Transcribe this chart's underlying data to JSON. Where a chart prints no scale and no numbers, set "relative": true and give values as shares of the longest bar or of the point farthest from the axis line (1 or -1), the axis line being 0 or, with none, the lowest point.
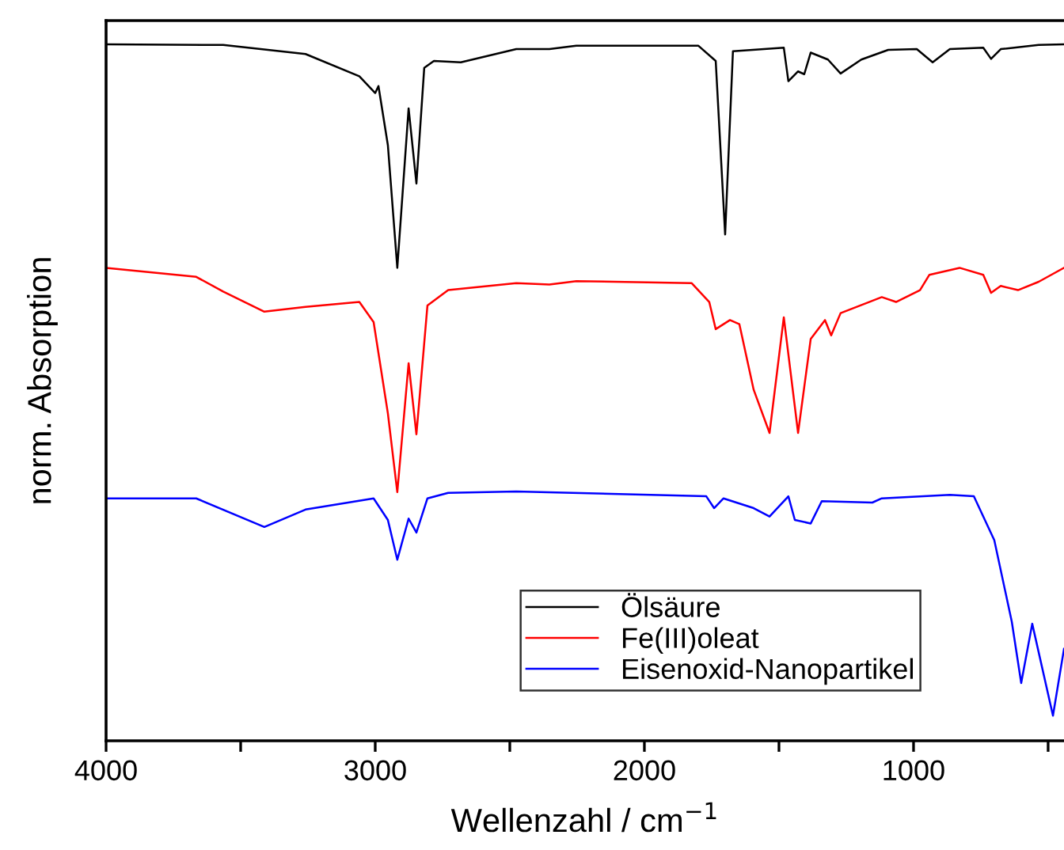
{
  "chart_data": {
    "type": "line",
    "relative": true,
    "xlabel": "Wellenzahl / cm$^{−1}$",
    "ylabel": "norm. Absorption",
    "xlim": [
      4000,
      441
    ],
    "xticks": [
      4000,
      {
        "value": 3500,
        "label": null
      },
      3000,
      {
        "value": 2500,
        "label": null
      },
      2000,
      {
        "value": 1500,
        "label": null
      },
      1000,
      {
        "value": 500,
        "label": null
      }
    ],
    "tick_labels": "x",
    "legend": "bottom right",
    "grid": false,
    "marker": "none",
    "line_style": "solid",
    "series": [
      {
        "name": "Ölsäure",
        "color": "#000000",
        "x": [
          4000,
          3565,
          3259,
          3059,
          3000,
          2988,
          2953,
          2918,
          2876,
          2847,
          2818,
          2782,
          2682,
          2476,
          2353,
          2253,
          1800,
          1735,
          1700,
          1671,
          1482,
          1465,
          1429,
          1406,
          1382,
          1318,
          1271,
          1194,
          1094,
          988,
          929,
          865,
          741,
          712,
          676,
          535,
          441
        ],
        "values": [
          1.0,
          0.999,
          0.986,
          0.954,
          0.93,
          0.94,
          0.855,
          0.679,
          0.908,
          0.8,
          0.966,
          0.976,
          0.974,
          0.993,
          0.993,
          0.998,
          0.998,
          0.976,
          0.727,
          0.99,
          0.995,
          0.947,
          0.961,
          0.957,
          0.988,
          0.978,
          0.958,
          0.978,
          0.992,
          0.993,
          0.974,
          0.993,
          0.995,
          0.979,
          0.993,
          0.999,
          1.0
        ]
      },
      {
        "name": "Fe(III)oleat",
        "color": "#ff0000",
        "x": [
          4000,
          3665,
          3565,
          3412,
          3259,
          3059,
          3006,
          2953,
          2918,
          2876,
          2847,
          2806,
          2729,
          2476,
          2353,
          2253,
          1824,
          1759,
          1735,
          1682,
          1647,
          1594,
          1535,
          1482,
          1429,
          1382,
          1329,
          1306,
          1271,
          1165,
          1118,
          1065,
          976,
          941,
          829,
          741,
          712,
          676,
          612,
          535,
          441
        ],
        "values": [
          0.679,
          0.666,
          0.645,
          0.616,
          0.623,
          0.63,
          0.601,
          0.47,
          0.357,
          0.542,
          0.44,
          0.625,
          0.647,
          0.657,
          0.655,
          0.66,
          0.657,
          0.63,
          0.591,
          0.604,
          0.598,
          0.504,
          0.442,
          0.608,
          0.442,
          0.577,
          0.604,
          0.582,
          0.614,
          0.63,
          0.637,
          0.63,
          0.647,
          0.669,
          0.679,
          0.669,
          0.643,
          0.653,
          0.647,
          0.659,
          0.679
        ]
      },
      {
        "name": "Eisenoxid-Nanopartikel",
        "color": "#0000ff",
        "x": [
          4000,
          3665,
          3412,
          3259,
          3006,
          2953,
          2918,
          2876,
          2847,
          2806,
          2729,
          2476,
          1770,
          1741,
          1706,
          1594,
          1535,
          1465,
          1441,
          1382,
          1341,
          1153,
          1118,
          865,
          776,
          700,
          635,
          600,
          559,
          482,
          441
        ],
        "values": [
          0.348,
          0.348,
          0.307,
          0.332,
          0.348,
          0.317,
          0.26,
          0.319,
          0.299,
          0.348,
          0.356,
          0.358,
          0.351,
          0.334,
          0.348,
          0.334,
          0.322,
          0.351,
          0.317,
          0.312,
          0.344,
          0.342,
          0.348,
          0.353,
          0.351,
          0.288,
          0.171,
          0.083,
          0.168,
          0.036,
          0.132
        ]
      }
    ]
  }
}
